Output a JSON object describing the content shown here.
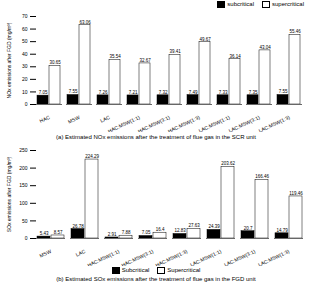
{
  "chart_data": [
    {
      "type": "bar",
      "title": "(a) Estimated NOx emissions after the treatment of flue gas in the SCR unit",
      "y_label": "NOx emissions after FGD (mg/m³)",
      "categories": [
        "HAC",
        "MSW",
        "LAC",
        "HAC:MSW(1:1)",
        "HAC:MSW(3:1)",
        "HAC:MSW(1:3)",
        "LAC:MSW(1:1)",
        "LAC:MSW(3:1)",
        "LAC:MSW(1:3)"
      ],
      "series": [
        {
          "name": "subcritical",
          "color": "#000000",
          "values": [
            7.05,
            7.55,
            7.26,
            7.21,
            7.32,
            7.49,
            7.33,
            7.35,
            7.55
          ]
        },
        {
          "name": "supercritical",
          "color": "#ffffff",
          "values": [
            30.65,
            63.06,
            35.54,
            32.67,
            39.41,
            49.67,
            36.14,
            43.04,
            55.46
          ]
        }
      ],
      "ylim": [
        0,
        70
      ],
      "yticks": [
        0,
        10,
        20,
        30,
        40,
        50,
        60,
        70
      ],
      "data_labels": true,
      "legend": "top",
      "grid": false
    },
    {
      "type": "bar",
      "title": "(b) Estimated SOx emissions after the treatment of flue gas in the FGD unit",
      "y_label": "SOx emissions after FGD (mg/m³)",
      "categories": [
        "MSW",
        "LAC",
        "HAC:MSW(1:1)",
        "HAC:MSW(3:1)",
        "HAC:MSW(1:3)",
        "LAC:MSW(1:1)",
        "LAC:MSW(3:1)",
        "LAC:MSW(1:3)"
      ],
      "series": [
        {
          "name": "Subcritical",
          "color": "#000000",
          "values": [
            5.43,
            26.78,
            2.91,
            7.05,
            12.83,
            24.39,
            20.7,
            14.79
          ]
        },
        {
          "name": "Supercritical",
          "color": "#ffffff",
          "values": [
            8.57,
            224.29,
            7.88,
            16.4,
            27.63,
            203.62,
            166.46,
            119.46
          ]
        }
      ],
      "ylim": [
        0,
        250
      ],
      "yticks": [
        0,
        50,
        100,
        150,
        200,
        250
      ],
      "data_labels": true,
      "legend": "bottom",
      "grid": false
    }
  ]
}
